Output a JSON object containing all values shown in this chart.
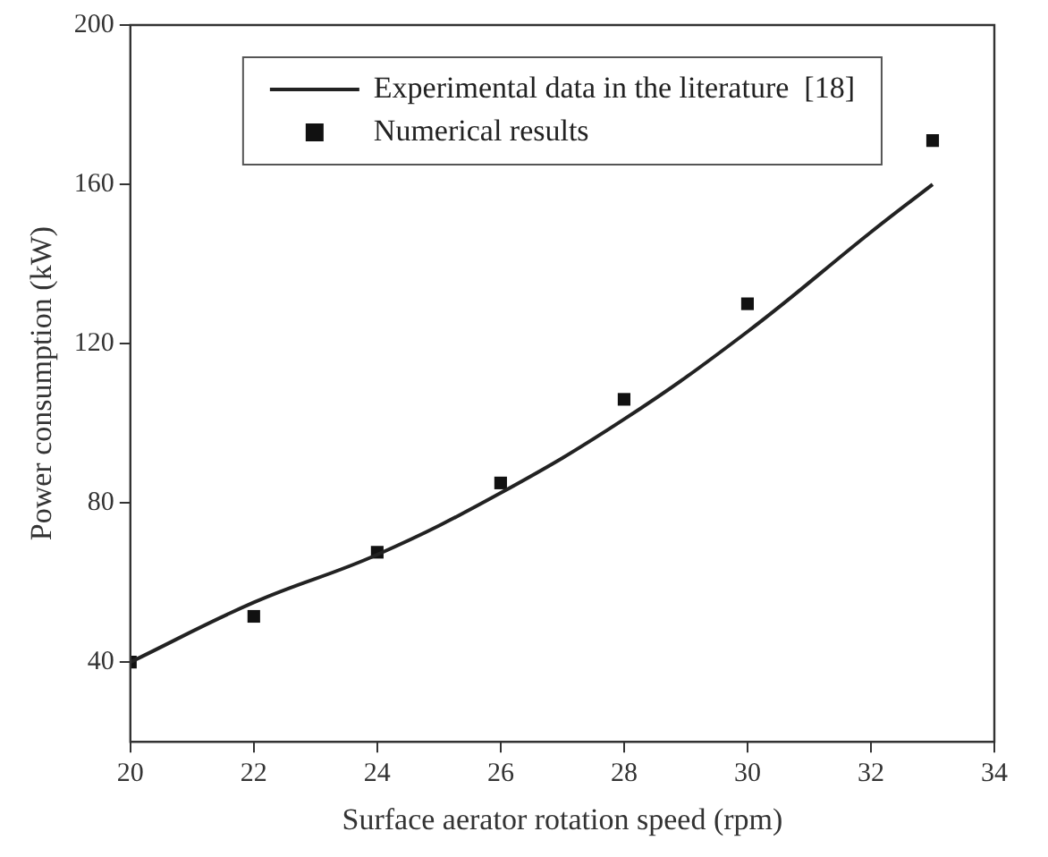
{
  "chart_data": {
    "type": "line",
    "xlabel": "Surface aerator rotation speed (rpm)",
    "ylabel": "Power consumption (kW)",
    "xlim": [
      20,
      34
    ],
    "xticks": [
      20,
      22,
      24,
      26,
      28,
      30,
      32,
      34
    ],
    "ylim": [
      20,
      200
    ],
    "yticks": [
      40,
      80,
      120,
      160,
      200
    ],
    "grid": false,
    "legend": "top",
    "series": [
      {
        "name": "Experimental data in the literature  [18]",
        "type": "line",
        "color": "#222222",
        "marker": "none",
        "line_style": "solid",
        "x": [
          20,
          22,
          24,
          26,
          28,
          30,
          32,
          33
        ],
        "values": [
          40,
          55,
          67,
          82.5,
          101,
          123,
          148,
          160
        ]
      },
      {
        "name": "Numerical results",
        "type": "scatter",
        "color": "#111111",
        "marker": "square",
        "x": [
          20,
          22,
          24,
          26,
          28,
          30,
          33
        ],
        "values": [
          40,
          51.5,
          67.6,
          85,
          106,
          130,
          171
        ]
      }
    ]
  }
}
